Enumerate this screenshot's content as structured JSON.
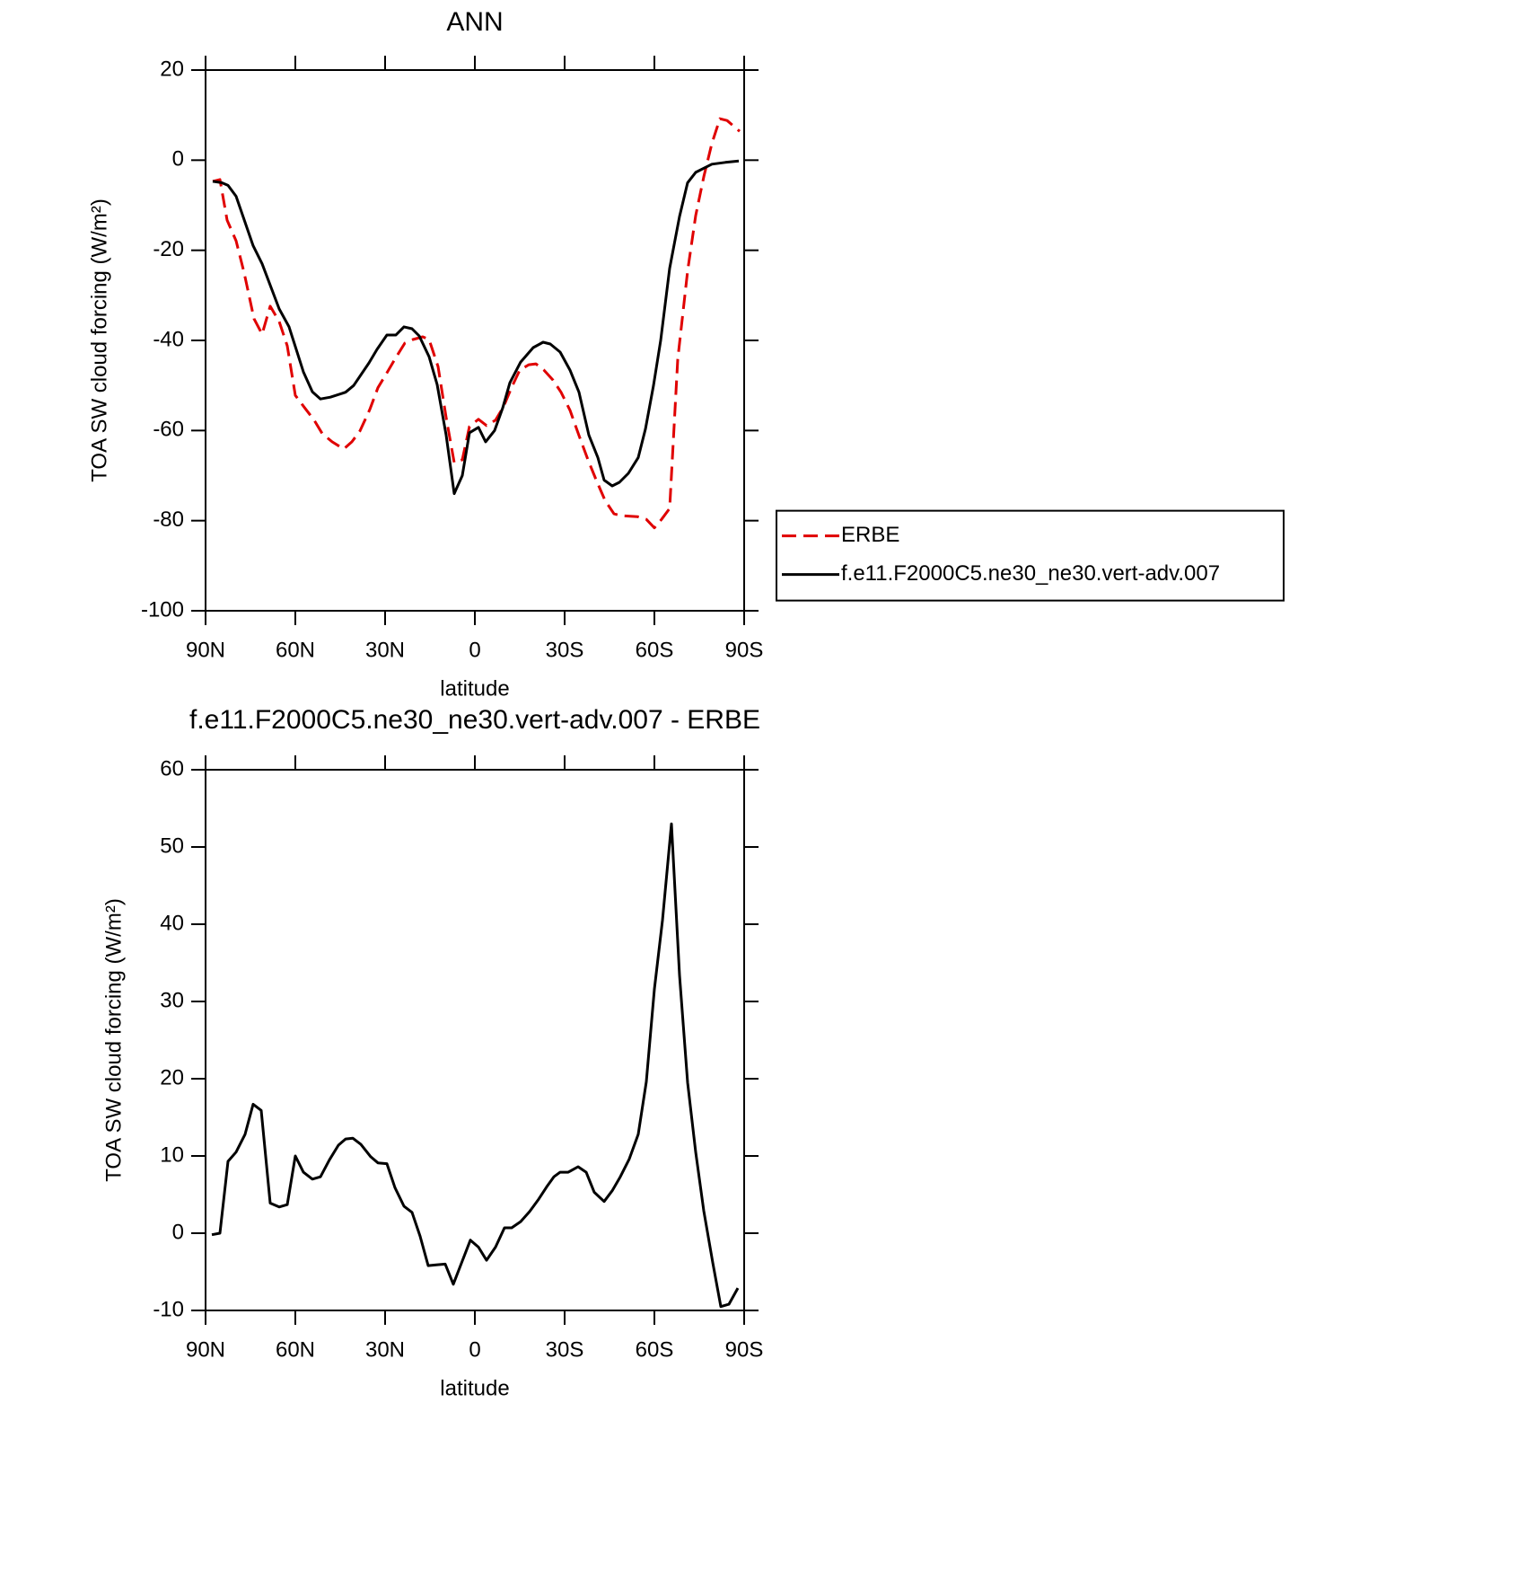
{
  "chart_data": [
    {
      "type": "line",
      "title": "ANN",
      "xlabel": "latitude",
      "ylabel": "TOA SW cloud forcing (W/m²)",
      "xlim": [
        90,
        -90
      ],
      "ylim": [
        -100,
        20
      ],
      "xticks": [
        {
          "value": 90,
          "label": "90N"
        },
        {
          "value": 60,
          "label": "60N"
        },
        {
          "value": 30,
          "label": "30N"
        },
        0,
        {
          "value": -30,
          "label": "30S"
        },
        {
          "value": -60,
          "label": "60S"
        },
        {
          "value": -90,
          "label": "90S"
        }
      ],
      "yticks": [
        -100,
        -80,
        -60,
        -40,
        -20,
        0,
        20
      ],
      "legend": "right",
      "series": [
        {
          "name": "ERBE",
          "color": "#e00000",
          "dash": true,
          "x": [
            87.6,
            85.2,
            82.8,
            79.8,
            77.1,
            73.8,
            71.1,
            68.4,
            65.4,
            62.7,
            60,
            56.7,
            53.7,
            51,
            47.7,
            43.8,
            41.1,
            38.4,
            35.1,
            32.4,
            29.4,
            26.4,
            23.4,
            20.7,
            17.4,
            15.3,
            12.3,
            9.6,
            6.9,
            4.2,
            1.8,
            -1.2,
            -3.9,
            -6.9,
            -9.6,
            -12.3,
            -15,
            -18,
            -20.4,
            -23.1,
            -26.1,
            -28.8,
            -31.8,
            -34.8,
            -37.8,
            -40.5,
            -43.5,
            -46.5,
            -48.9,
            -54.3,
            -57.3,
            -60,
            -62.4,
            -65.1,
            -67.8,
            -71.1,
            -73.8,
            -76.5,
            -79.2,
            -81.9,
            -84.3,
            -88.5
          ],
          "values": [
            -4.7,
            -4.3,
            -13.3,
            -17.9,
            -25,
            -35.2,
            -38.6,
            -32.4,
            -35.8,
            -41.2,
            -52.2,
            -55.1,
            -57.7,
            -60.7,
            -62.5,
            -64.1,
            -62.5,
            -60.1,
            -55.3,
            -50.5,
            -47.2,
            -43.8,
            -40.6,
            -39.8,
            -39.2,
            -39.8,
            -45.8,
            -57.1,
            -67.1,
            -66.5,
            -59.1,
            -57.5,
            -58.9,
            -57.7,
            -54.7,
            -50.4,
            -46.6,
            -45.4,
            -45.2,
            -46.6,
            -48.8,
            -51.5,
            -55.5,
            -61.1,
            -66.5,
            -70.9,
            -75.5,
            -78.5,
            -78.9,
            -79.1,
            -79.7,
            -81.6,
            -79.7,
            -77.3,
            -44.2,
            -24.6,
            -12.3,
            -3.7,
            3.7,
            9.2,
            8.8,
            6.4
          ]
        },
        {
          "name": "f.e11.F2000C5.ne30_ne30.vert-adv.007",
          "color": "#000000",
          "dash": false,
          "x": [
            87.6,
            84.6,
            82.5,
            79.8,
            74.1,
            71.1,
            65.4,
            62.1,
            57.3,
            54.3,
            51.6,
            48.3,
            43.2,
            40.5,
            35.4,
            32.7,
            29.4,
            26.4,
            23.7,
            21,
            18.6,
            15.3,
            12.6,
            9.6,
            6.9,
            4.2,
            1.8,
            -1.2,
            -3.6,
            -6.6,
            -9.3,
            -11.7,
            -15.3,
            -19.5,
            -22.8,
            -25.2,
            -28.5,
            -31.8,
            -34.8,
            -38.1,
            -41.1,
            -43.2,
            -45.9,
            -48.3,
            -51.3,
            -54.6,
            -57,
            -59.7,
            -62.1,
            -65.1,
            -68.4,
            -71.1,
            -73.8,
            -79.2,
            -83.7,
            -88.2
          ],
          "values": [
            -4.7,
            -5,
            -5.6,
            -8,
            -19,
            -23,
            -33,
            -37,
            -47,
            -51.4,
            -53,
            -52.6,
            -51.5,
            -50,
            -45,
            -42,
            -38.8,
            -38.8,
            -37,
            -37.4,
            -39,
            -43.6,
            -49.8,
            -61,
            -74,
            -70,
            -60.5,
            -59.3,
            -62.5,
            -60,
            -55,
            -49.4,
            -44.8,
            -41.6,
            -40.4,
            -40.8,
            -42.6,
            -46.6,
            -51.5,
            -61,
            -66,
            -71,
            -72.3,
            -71.5,
            -69.5,
            -66,
            -59.7,
            -50,
            -40,
            -24,
            -12.5,
            -5,
            -2.7,
            -0.9,
            -0.5,
            -0.2
          ]
        }
      ]
    },
    {
      "type": "line",
      "title": "f.e11.F2000C5.ne30_ne30.vert-adv.007 - ERBE",
      "xlabel": "latitude",
      "ylabel": "TOA SW cloud forcing (W/m²)",
      "xlim": [
        90,
        -90
      ],
      "ylim": [
        -10,
        60
      ],
      "xticks": [
        {
          "value": 90,
          "label": "90N"
        },
        {
          "value": 60,
          "label": "60N"
        },
        {
          "value": 30,
          "label": "30N"
        },
        0,
        {
          "value": -30,
          "label": "30S"
        },
        {
          "value": -60,
          "label": "60S"
        },
        {
          "value": -90,
          "label": "90S"
        }
      ],
      "yticks": [
        -10,
        0,
        10,
        20,
        30,
        40,
        50,
        60
      ],
      "series": [
        {
          "color": "#000000",
          "dash": false,
          "x": [
            87.9,
            85.2,
            82.5,
            79.8,
            76.8,
            74.1,
            71.4,
            68.4,
            65.4,
            62.7,
            60,
            57.3,
            54.3,
            51.6,
            48.6,
            45.6,
            43.2,
            40.8,
            38.1,
            34.8,
            32.4,
            29.4,
            26.7,
            23.7,
            21,
            18.3,
            15.6,
            12.9,
            9.9,
            7.2,
            4.5,
            1.5,
            -1.2,
            -3.9,
            -6.9,
            -9.9,
            -12.3,
            -15.3,
            -18.3,
            -21.3,
            -24,
            -26.4,
            -28.5,
            -31.2,
            -34.5,
            -37.2,
            -39.9,
            -43.2,
            -45.9,
            -48.6,
            -51.6,
            -54.6,
            -57.3,
            -60,
            -62.7,
            -65.7,
            -68.4,
            -71.1,
            -73.8,
            -76.5,
            -79.5,
            -82.2,
            -84.9,
            -87.9
          ],
          "values": [
            -0.2,
            0,
            9.3,
            10.5,
            12.8,
            16.7,
            15.9,
            3.9,
            3.4,
            3.7,
            10,
            7.9,
            7,
            7.3,
            9.5,
            11.4,
            12.2,
            12.3,
            11.5,
            9.9,
            9.1,
            9,
            5.9,
            3.5,
            2.7,
            -0.4,
            -4.2,
            -4.1,
            -4,
            -6.6,
            -3.9,
            -0.9,
            -1.8,
            -3.5,
            -1.8,
            0.7,
            0.7,
            1.5,
            2.8,
            4.4,
            6,
            7.3,
            7.9,
            7.9,
            8.6,
            7.9,
            5.3,
            4.1,
            5.5,
            7.3,
            9.6,
            12.8,
            19.6,
            31.6,
            40.5,
            53,
            33.4,
            19.5,
            10.5,
            2.9,
            -3.8,
            -9.5,
            -9.2,
            -7.1
          ]
        }
      ]
    }
  ]
}
